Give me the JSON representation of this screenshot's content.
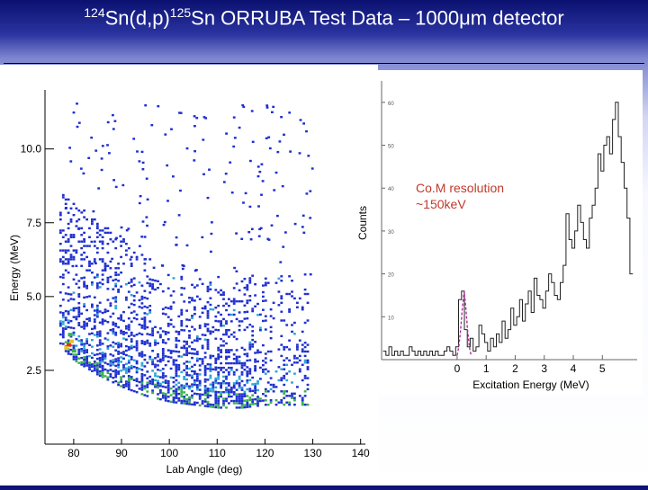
{
  "slide": {
    "title_prefix_super": "124",
    "title_prefix": "Sn(d,p)",
    "title_mid_super": "125",
    "title_rest": "Sn ORRUBA Test Data – 1000μm detector"
  },
  "colors": {
    "header_dark": "#0b1170",
    "header_light": "#d2d6f2",
    "spectrum_line": "#222222",
    "fit_peak": "#b1309c",
    "resolution_text": "#c0392b"
  },
  "chart_data": [
    {
      "type": "heatmap",
      "xlabel": "Lab Angle (deg)",
      "ylabel": "Energy (MeV)",
      "xlim": [
        74,
        141
      ],
      "ylim": [
        0,
        12
      ],
      "x_ticks": [
        80,
        90,
        100,
        110,
        120,
        130,
        140
      ],
      "x_tick_labels": [
        "80",
        "90",
        "100",
        "110",
        "120",
        "130",
        "140"
      ],
      "y_ticks": [
        2.5,
        5.0,
        7.5,
        10.0
      ],
      "y_tick_labels": [
        "2.5",
        "5.0",
        "7.5",
        "10.0"
      ],
      "color_scale": [
        "#1f2fd0",
        "#2aa6d8",
        "#35b34a",
        "#f0c020",
        "#e03020"
      ],
      "ridge": {
        "angle": [
          77,
          80,
          85,
          90,
          95,
          100,
          105,
          110,
          115,
          120
        ],
        "energy": [
          3.4,
          2.9,
          2.4,
          2.0,
          1.7,
          1.5,
          1.4,
          1.3,
          1.3,
          1.4
        ]
      },
      "band_upper_edge_energy": 5.7,
      "band_angle_range": [
        77,
        129
      ],
      "hot_spot": {
        "angle": 78.5,
        "energy": 3.3
      },
      "upper_cluster": {
        "angle_range": [
          77,
          96
        ],
        "energy_range": [
          5.7,
          8.5
        ]
      },
      "sparse_events_energy_max": 11.5
    },
    {
      "type": "line",
      "xlabel": "Excitation Energy (MeV)",
      "ylabel": "Counts",
      "xlim": [
        -2.6,
        6.2
      ],
      "ylim": [
        0,
        65
      ],
      "x_ticks": [
        0,
        1,
        2,
        3,
        4,
        5
      ],
      "x_tick_labels": [
        "0",
        "1",
        "2",
        "3",
        "4",
        "5"
      ],
      "y_ticks": [
        10,
        20,
        30,
        40,
        50,
        60
      ],
      "y_tick_labels": [
        "10",
        "20",
        "30",
        "40",
        "50",
        "60"
      ],
      "annotation": "Co.M resolution ~150keV",
      "series": [
        {
          "style": "step",
          "x": [
            -2.5,
            -2.4,
            -2.3,
            -2.2,
            -2.1,
            -2.0,
            -1.9,
            -1.8,
            -1.7,
            -1.6,
            -1.5,
            -1.4,
            -1.3,
            -1.2,
            -1.1,
            -1.0,
            -0.9,
            -0.8,
            -0.7,
            -0.6,
            -0.5,
            -0.4,
            -0.3,
            -0.2,
            -0.1,
            0.0,
            0.1,
            0.2,
            0.3,
            0.4,
            0.5,
            0.6,
            0.7,
            0.8,
            0.9,
            1.0,
            1.1,
            1.2,
            1.3,
            1.4,
            1.5,
            1.6,
            1.7,
            1.8,
            1.9,
            2.0,
            2.1,
            2.2,
            2.3,
            2.4,
            2.5,
            2.6,
            2.7,
            2.8,
            2.9,
            3.0,
            3.1,
            3.2,
            3.3,
            3.4,
            3.5,
            3.6,
            3.7,
            3.8,
            3.9,
            4.0,
            4.1,
            4.2,
            4.3,
            4.4,
            4.5,
            4.6,
            4.7,
            4.8,
            4.9,
            5.0,
            5.1,
            5.2,
            5.3,
            5.4,
            5.5,
            5.6,
            5.7,
            5.8,
            5.9,
            6.0
          ],
          "y": [
            2,
            1,
            3,
            1,
            2,
            1,
            2,
            1,
            1,
            3,
            2,
            1,
            2,
            1,
            2,
            1,
            2,
            1,
            2,
            1,
            1,
            2,
            3,
            2,
            1,
            3,
            14,
            16,
            7,
            3,
            5,
            2,
            3,
            8,
            6,
            4,
            2,
            5,
            3,
            6,
            4,
            9,
            5,
            7,
            12,
            8,
            10,
            14,
            9,
            13,
            16,
            11,
            19,
            15,
            14,
            12,
            16,
            20,
            18,
            15,
            14,
            18,
            22,
            34,
            28,
            26,
            30,
            36,
            32,
            28,
            26,
            33,
            36,
            40,
            48,
            44,
            50,
            52,
            48,
            56,
            60,
            52,
            46,
            40,
            33,
            20
          ]
        },
        {
          "style": "dashed",
          "x": [
            0.0,
            0.06,
            0.12,
            0.18,
            0.24,
            0.3,
            0.36,
            0.42,
            0.48
          ],
          "y": [
            1,
            3,
            7,
            12,
            16,
            12,
            7,
            3,
            1
          ]
        }
      ]
    }
  ]
}
